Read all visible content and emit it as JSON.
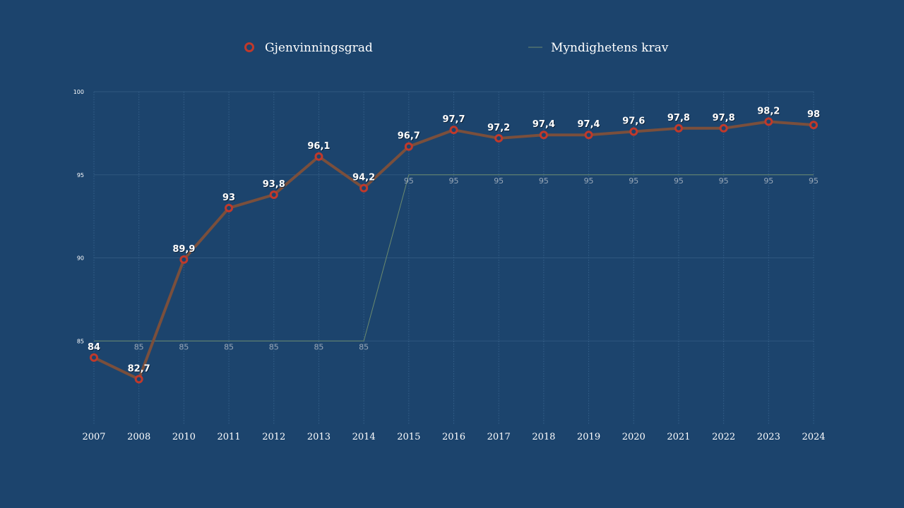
{
  "chart_data": {
    "type": "line",
    "categories": [
      "2007",
      "2008",
      "2010",
      "2011",
      "2012",
      "2013",
      "2014",
      "2015",
      "2016",
      "2017",
      "2018",
      "2019",
      "2020",
      "2021",
      "2022",
      "2023",
      "2024"
    ],
    "series": [
      {
        "name": "Gjenvinningsgrad",
        "color": "#c0392b",
        "line_color": "#7a4f3c",
        "values": [
          84,
          82.7,
          89.9,
          93,
          93.8,
          96.1,
          94.2,
          96.7,
          97.7,
          97.2,
          97.4,
          97.4,
          97.6,
          97.8,
          97.8,
          98.2,
          98
        ],
        "labels": [
          "84",
          "82,7",
          "89,9",
          "93",
          "93,8",
          "96,1",
          "94,2",
          "96,7",
          "97,7",
          "97,2",
          "97,4",
          "97,4",
          "97,6",
          "97,8",
          "97,8",
          "98,2",
          "98"
        ]
      },
      {
        "name": "Myndighetens krav",
        "color": "#6b8a6e",
        "values": [
          85,
          85,
          85,
          85,
          85,
          85,
          85,
          95,
          95,
          95,
          95,
          95,
          95,
          95,
          95,
          95,
          95
        ],
        "labels": [
          "",
          "85",
          "85",
          "85",
          "85",
          "85",
          "85",
          "95",
          "95",
          "95",
          "95",
          "95",
          "95",
          "95",
          "95",
          "95",
          "95"
        ]
      }
    ],
    "y_ticks": [
      "85",
      "90",
      "95",
      "100"
    ],
    "ylim": [
      80,
      100
    ],
    "grid": true,
    "legend_position": "top"
  }
}
